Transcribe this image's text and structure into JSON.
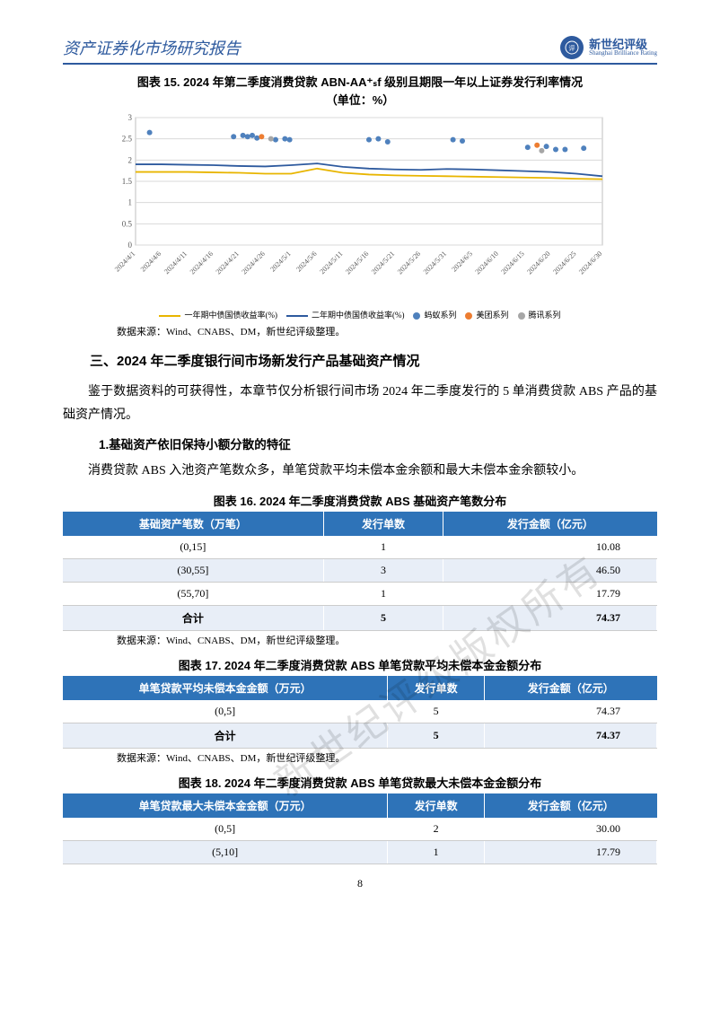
{
  "header": {
    "title": "资产证券化市场研究报告",
    "brand_cn": "新世纪评级",
    "brand_en": "Shanghai Brilliance Rating"
  },
  "chart15": {
    "title_line1": "图表 15.  2024 年第二季度消费贷款 ABN-AA⁺ₛf 级别且期限一年以上证券发行利率情况",
    "title_line2": "（单位：%）",
    "type": "scatter_line",
    "ylim": [
      0,
      3
    ],
    "ytick_step": 0.5,
    "grid_color": "#d9d9d9",
    "background_color": "#ffffff",
    "plot_border": "#bfbfbf",
    "x_labels": [
      "2024/4/1",
      "2024/4/6",
      "2024/4/11",
      "2024/4/16",
      "2024/4/21",
      "2024/4/26",
      "2024/5/1",
      "2024/5/6",
      "2024/5/11",
      "2024/5/16",
      "2024/5/21",
      "2024/5/26",
      "2024/5/31",
      "2024/6/5",
      "2024/6/10",
      "2024/6/15",
      "2024/6/20",
      "2024/6/25",
      "2024/6/30"
    ],
    "series": {
      "one_year": {
        "label": "一年期中债国债收益率(%)",
        "color": "#e8b500",
        "type": "line",
        "values": [
          1.72,
          1.72,
          1.72,
          1.71,
          1.7,
          1.68,
          1.68,
          1.8,
          1.7,
          1.66,
          1.64,
          1.63,
          1.62,
          1.61,
          1.6,
          1.59,
          1.58,
          1.56,
          1.55
        ]
      },
      "two_year": {
        "label": "二年期中债国债收益率(%)",
        "color": "#2e5a9e",
        "type": "line",
        "values": [
          1.9,
          1.9,
          1.89,
          1.88,
          1.86,
          1.85,
          1.88,
          1.92,
          1.84,
          1.8,
          1.78,
          1.77,
          1.79,
          1.78,
          1.76,
          1.74,
          1.72,
          1.68,
          1.62
        ]
      },
      "ant": {
        "label": "蚂蚁系列",
        "color": "#4f81bd",
        "type": "scatter",
        "points": [
          [
            0.03,
            2.65
          ],
          [
            0.21,
            2.55
          ],
          [
            0.23,
            2.58
          ],
          [
            0.24,
            2.55
          ],
          [
            0.25,
            2.58
          ],
          [
            0.26,
            2.52
          ],
          [
            0.3,
            2.48
          ],
          [
            0.32,
            2.5
          ],
          [
            0.33,
            2.48
          ],
          [
            0.5,
            2.48
          ],
          [
            0.52,
            2.5
          ],
          [
            0.54,
            2.43
          ],
          [
            0.68,
            2.48
          ],
          [
            0.7,
            2.45
          ],
          [
            0.84,
            2.3
          ],
          [
            0.88,
            2.32
          ],
          [
            0.9,
            2.25
          ],
          [
            0.92,
            2.25
          ],
          [
            0.96,
            2.28
          ]
        ]
      },
      "meituan": {
        "label": "美团系列",
        "color": "#ed7d31",
        "type": "scatter",
        "points": [
          [
            0.27,
            2.55
          ],
          [
            0.86,
            2.35
          ]
        ]
      },
      "tencent": {
        "label": "腾讯系列",
        "color": "#a6a6a6",
        "type": "scatter",
        "points": [
          [
            0.29,
            2.5
          ],
          [
            0.87,
            2.22
          ]
        ]
      }
    },
    "source": "数据来源：Wind、CNABS、DM，新世纪评级整理。"
  },
  "section3": {
    "heading": "三、2024 年二季度银行间市场新发行产品基础资产情况",
    "para1": "鉴于数据资料的可获得性，本章节仅分析银行间市场 2024 年二季度发行的 5 单消费贷款 ABS 产品的基础资产情况。",
    "sub1": "1.基础资产依旧保持小额分散的特征",
    "para2": "消费贷款 ABS 入池资产笔数众多，单笔贷款平均未偿本金余额和最大未偿本金余额较小。"
  },
  "table16": {
    "title": "图表 16.  2024 年二季度消费贷款 ABS 基础资产笔数分布",
    "header_bg": "#2e73b8",
    "header_fg": "#ffffff",
    "alt_bg": "#e8eef7",
    "columns": [
      "基础资产笔数（万笔）",
      "发行单数",
      "发行金额（亿元）"
    ],
    "rows": [
      [
        "(0,15]",
        "1",
        "10.08"
      ],
      [
        "(30,55]",
        "3",
        "46.50"
      ],
      [
        "(55,70]",
        "1",
        "17.79"
      ],
      [
        "合计",
        "5",
        "74.37"
      ]
    ],
    "source": "数据来源：Wind、CNABS、DM，新世纪评级整理。"
  },
  "table17": {
    "title": "图表 17.  2024 年二季度消费贷款 ABS 单笔贷款平均未偿本金金额分布",
    "columns": [
      "单笔贷款平均未偿本金金额（万元）",
      "发行单数",
      "发行金额（亿元）"
    ],
    "rows": [
      [
        "(0,5]",
        "5",
        "74.37"
      ],
      [
        "合计",
        "5",
        "74.37"
      ]
    ],
    "source": "数据来源：Wind、CNABS、DM，新世纪评级整理。"
  },
  "table18": {
    "title": "图表 18.  2024 年二季度消费贷款 ABS 单笔贷款最大未偿本金金额分布",
    "columns": [
      "单笔贷款最大未偿本金金额（万元）",
      "发行单数",
      "发行金额（亿元）"
    ],
    "rows": [
      [
        "(0,5]",
        "2",
        "30.00"
      ],
      [
        "(5,10]",
        "1",
        "17.79"
      ]
    ]
  },
  "watermark": "新世纪评级版权所有",
  "page_number": "8"
}
